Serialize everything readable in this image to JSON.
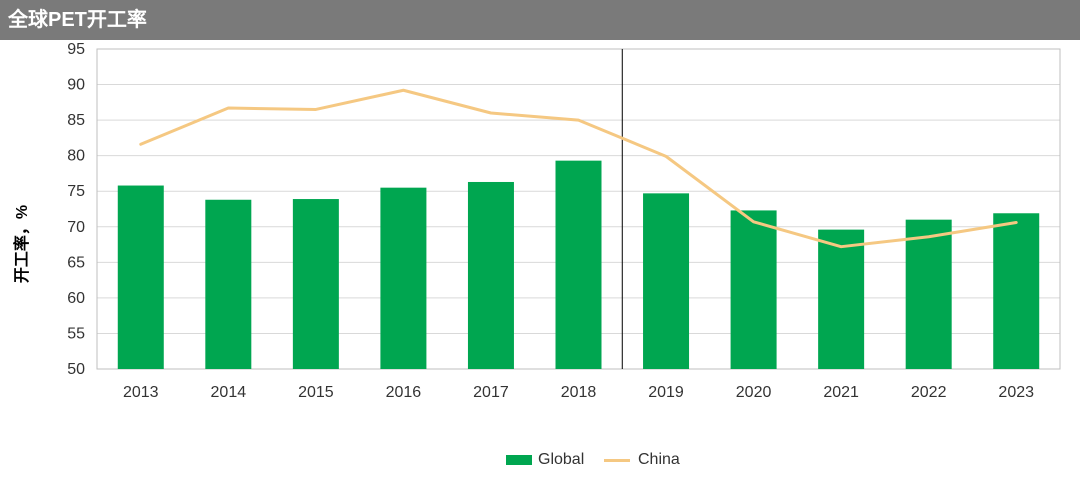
{
  "header": {
    "title": "全球PET开工率"
  },
  "chart_data": {
    "type": "bar",
    "categories": [
      "2013",
      "2014",
      "2015",
      "2016",
      "2017",
      "2018",
      "2019",
      "2020",
      "2021",
      "2022",
      "2023"
    ],
    "series": [
      {
        "name": "Global",
        "kind": "bar",
        "color": "#00a650",
        "values": [
          75.8,
          73.8,
          73.9,
          75.5,
          76.3,
          79.3,
          74.7,
          72.3,
          69.6,
          71.0,
          71.9
        ]
      },
      {
        "name": "China",
        "kind": "line",
        "color": "#f5c882",
        "values": [
          81.6,
          86.7,
          86.5,
          89.2,
          86.0,
          85.0,
          79.9,
          70.7,
          67.2,
          68.6,
          70.6
        ]
      }
    ],
    "ylabel": "开工率，%",
    "ylim": [
      50,
      95
    ],
    "yticks": [
      "50",
      "55",
      "60",
      "65",
      "70",
      "75",
      "80",
      "85",
      "90",
      "95"
    ],
    "grid": true,
    "legend_position": "bottom",
    "divider_between": [
      "2018",
      "2019"
    ]
  }
}
